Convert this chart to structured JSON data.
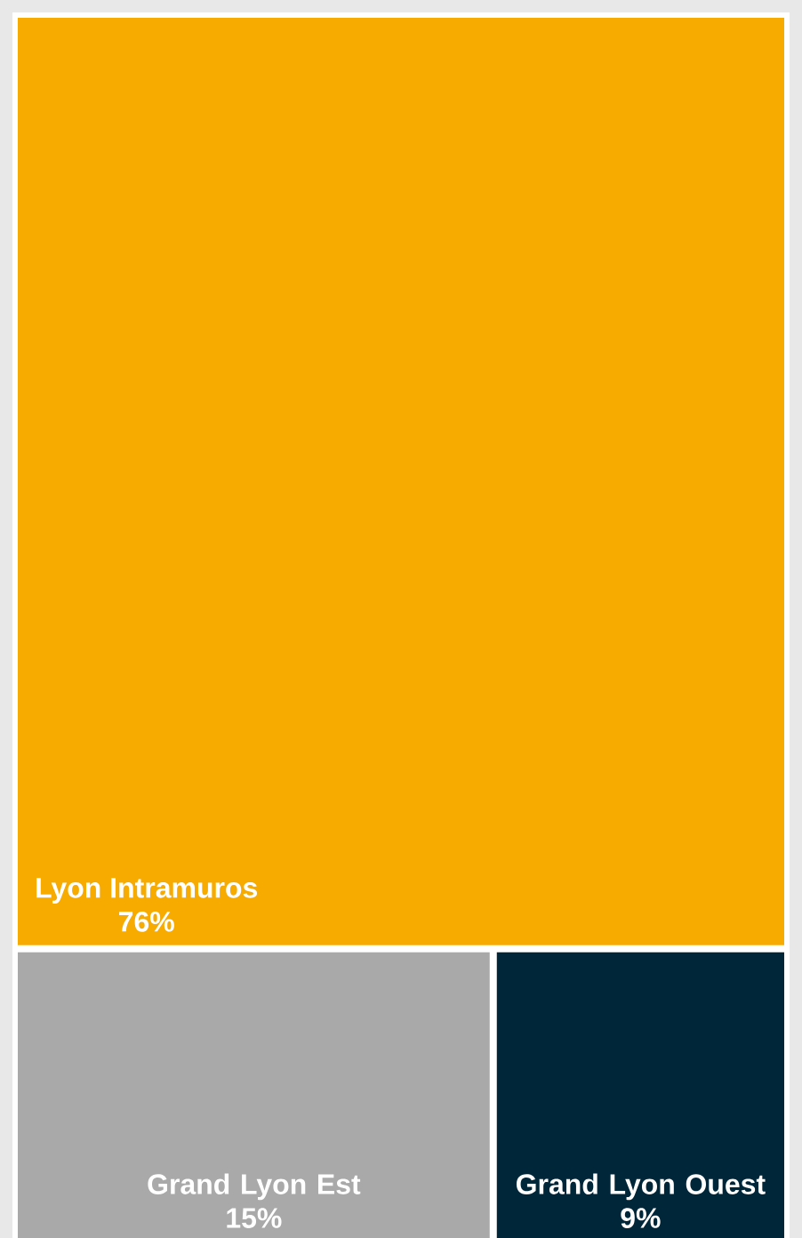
{
  "chart_data": {
    "type": "other",
    "categories": [
      "Lyon Intramuros",
      "Grand Lyon Est",
      "Grand Lyon Ouest"
    ],
    "values": [
      76,
      15,
      9
    ],
    "colors": [
      "#f7ab00",
      "#a9a9a9",
      "#00263a"
    ],
    "value_labels": [
      "76%",
      "15%",
      "9%"
    ]
  }
}
